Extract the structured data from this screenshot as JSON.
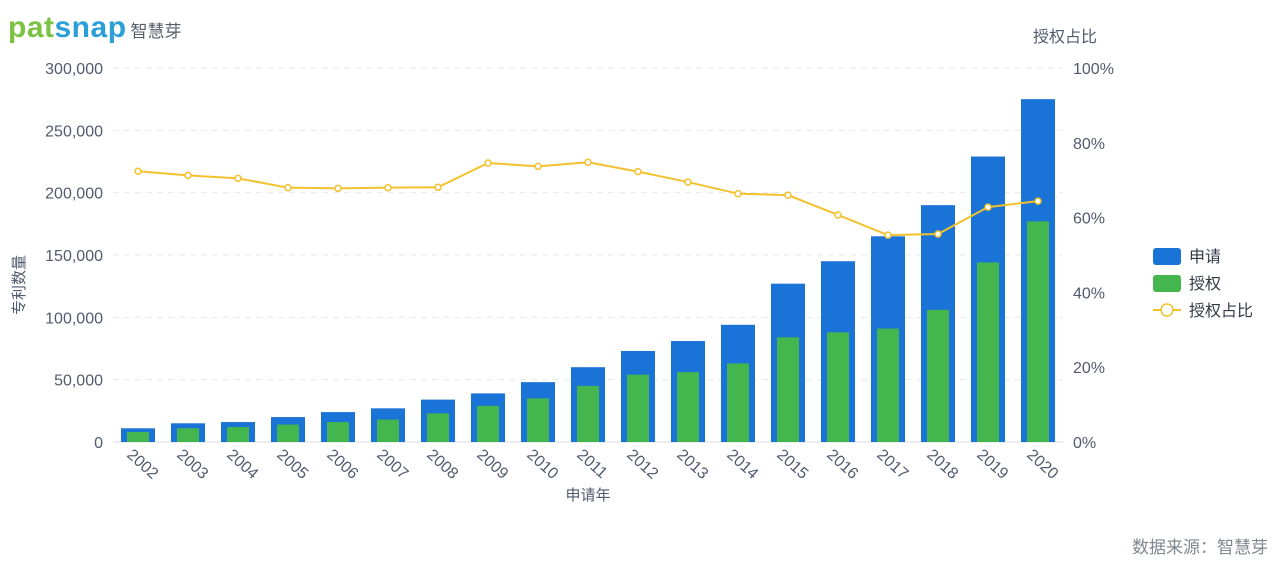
{
  "brand": {
    "logo_text": "patsnap",
    "logo_cn": "智慧芽"
  },
  "source_note": "数据来源：智慧芽",
  "colors": {
    "applications": "#1a73d6",
    "grants": "#45b64d",
    "ratio": "#f2c12e",
    "grid": "#e6e9ef",
    "axis_text": "#515a6e"
  },
  "chart_data": {
    "type": "bar",
    "title": "",
    "xlabel": "申请年",
    "ylabel": "专利数量",
    "y2label": "授权占比",
    "categories": [
      "2002",
      "2003",
      "2004",
      "2005",
      "2006",
      "2007",
      "2008",
      "2009",
      "2010",
      "2011",
      "2012",
      "2013",
      "2014",
      "2015",
      "2016",
      "2017",
      "2018",
      "2019",
      "2020"
    ],
    "series": [
      {
        "name": "申请",
        "type": "bar",
        "axis": "left",
        "values": [
          11000,
          15000,
          16000,
          20000,
          24000,
          27000,
          34000,
          39000,
          48000,
          60000,
          73000,
          81000,
          94000,
          127000,
          145000,
          165000,
          190000,
          229000,
          275000
        ]
      },
      {
        "name": "授权",
        "type": "bar",
        "axis": "left",
        "values": [
          8000,
          11000,
          12000,
          14000,
          16000,
          18000,
          23000,
          29000,
          35000,
          45000,
          54000,
          56000,
          63000,
          84000,
          88000,
          91000,
          106000,
          144000,
          177000
        ]
      },
      {
        "name": "授权占比",
        "type": "line",
        "axis": "right",
        "values": [
          72.4,
          71.3,
          70.5,
          68.0,
          67.8,
          68.0,
          68.1,
          74.6,
          73.7,
          74.8,
          72.3,
          69.5,
          66.4,
          66.0,
          60.7,
          55.3,
          55.6,
          62.8,
          64.4
        ]
      }
    ],
    "ylim": [
      0,
      300000
    ],
    "yticks": [
      "0",
      "50,000",
      "100,000",
      "150,000",
      "200,000",
      "250,000",
      "300,000"
    ],
    "y2lim": [
      0,
      100
    ],
    "y2ticks": [
      "0%",
      "20%",
      "40%",
      "60%",
      "80%",
      "100%"
    ],
    "grid": true,
    "legend_position": "right"
  }
}
